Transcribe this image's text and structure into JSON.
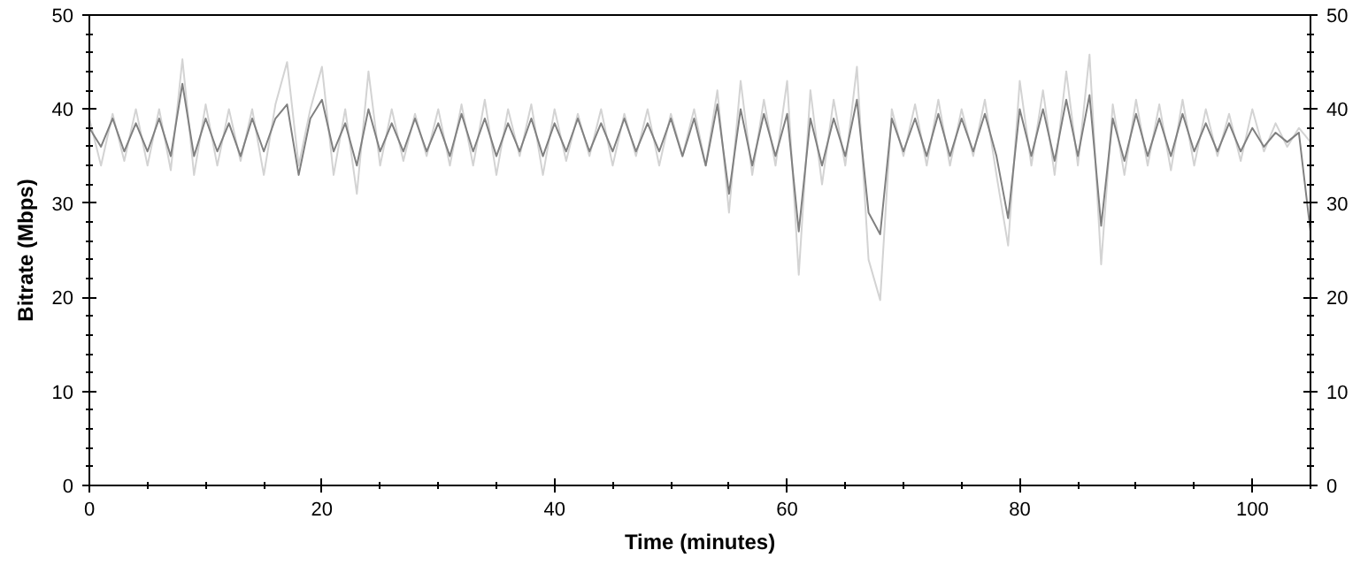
{
  "chart_data": {
    "type": "line",
    "xlabel": "Time (minutes)",
    "ylabel": "Bitrate (Mbps)",
    "x": [
      0,
      1,
      2,
      3,
      4,
      5,
      6,
      7,
      8,
      9,
      10,
      11,
      12,
      13,
      14,
      15,
      16,
      17,
      18,
      19,
      20,
      21,
      22,
      23,
      24,
      25,
      26,
      27,
      28,
      29,
      30,
      31,
      32,
      33,
      34,
      35,
      36,
      37,
      38,
      39,
      40,
      41,
      42,
      43,
      44,
      45,
      46,
      47,
      48,
      49,
      50,
      51,
      52,
      53,
      54,
      55,
      56,
      57,
      58,
      59,
      60,
      61,
      62,
      63,
      64,
      65,
      66,
      67,
      68,
      69,
      70,
      71,
      72,
      73,
      74,
      75,
      76,
      77,
      78,
      79,
      80,
      81,
      82,
      83,
      84,
      85,
      86,
      87,
      88,
      89,
      90,
      91,
      92,
      93,
      94,
      95,
      96,
      97,
      98,
      99,
      100,
      101,
      102,
      103,
      104,
      105
    ],
    "series": [
      {
        "color": "#d3d3d3",
        "values": [
          39,
          34,
          39.5,
          34.5,
          40,
          34,
          40,
          33.5,
          45.3,
          33,
          40.5,
          34,
          40,
          34.5,
          40,
          33,
          40.5,
          45,
          34,
          40,
          44.5,
          33,
          40,
          31,
          44,
          34,
          40,
          34.5,
          39.5,
          35,
          40,
          34,
          40.5,
          34,
          41,
          33,
          40,
          35,
          40.5,
          33,
          40,
          34.5,
          39.5,
          35,
          40,
          34,
          39.5,
          35,
          40,
          34,
          39.5,
          35,
          40,
          34,
          42,
          29,
          43,
          33,
          41,
          34,
          43,
          22.4,
          42,
          32,
          41,
          34,
          44.5,
          24,
          19.7,
          40,
          35,
          40.5,
          34,
          41,
          34,
          40,
          35,
          41,
          33,
          25.5,
          43,
          34,
          42,
          33,
          44,
          34,
          45.8,
          23.5,
          40.5,
          33,
          41,
          34,
          40.5,
          33.5,
          41,
          34,
          40,
          35,
          39.5,
          34.5,
          40,
          35.5,
          38.5,
          36,
          38,
          36.5
        ]
      },
      {
        "color": "#808080",
        "values": [
          38,
          36,
          39,
          35.5,
          38.5,
          35.5,
          39,
          35,
          42.7,
          35,
          39,
          35.5,
          38.5,
          35,
          39,
          35.5,
          39,
          40.5,
          33,
          39,
          41,
          35.5,
          38.5,
          34,
          40,
          35.5,
          38.5,
          35.5,
          39,
          35.5,
          38.5,
          35,
          39.5,
          35.5,
          39,
          35,
          38.5,
          35.5,
          39,
          35,
          38.5,
          35.5,
          39,
          35.5,
          38.5,
          35.5,
          39,
          35.5,
          38.5,
          35.5,
          39,
          35,
          39,
          34,
          40.5,
          31,
          40,
          34,
          39.5,
          35,
          39.5,
          27,
          39,
          34,
          39,
          35,
          41,
          29,
          26.7,
          39,
          35.5,
          39,
          35,
          39.5,
          35,
          39,
          35.5,
          39.5,
          35,
          28.4,
          40,
          35,
          40,
          34.5,
          41,
          35,
          41.5,
          27.6,
          39,
          34.5,
          39.5,
          35,
          39,
          35,
          39.5,
          35.5,
          38.5,
          35.5,
          38.5,
          35.5,
          38,
          36,
          37.5,
          36.5,
          37.5,
          27
        ]
      }
    ],
    "xlim": [
      0,
      105
    ],
    "xticks": [
      0,
      20,
      40,
      60,
      80,
      100
    ],
    "ylim": [
      0,
      50
    ],
    "yticks": [
      0,
      10,
      20,
      30,
      40,
      50
    ],
    "y2lim": [
      0,
      50
    ],
    "y2ticks": [
      0,
      10,
      20,
      30,
      40,
      50
    ],
    "grid": false,
    "marker": "none",
    "line_style": "solid"
  }
}
